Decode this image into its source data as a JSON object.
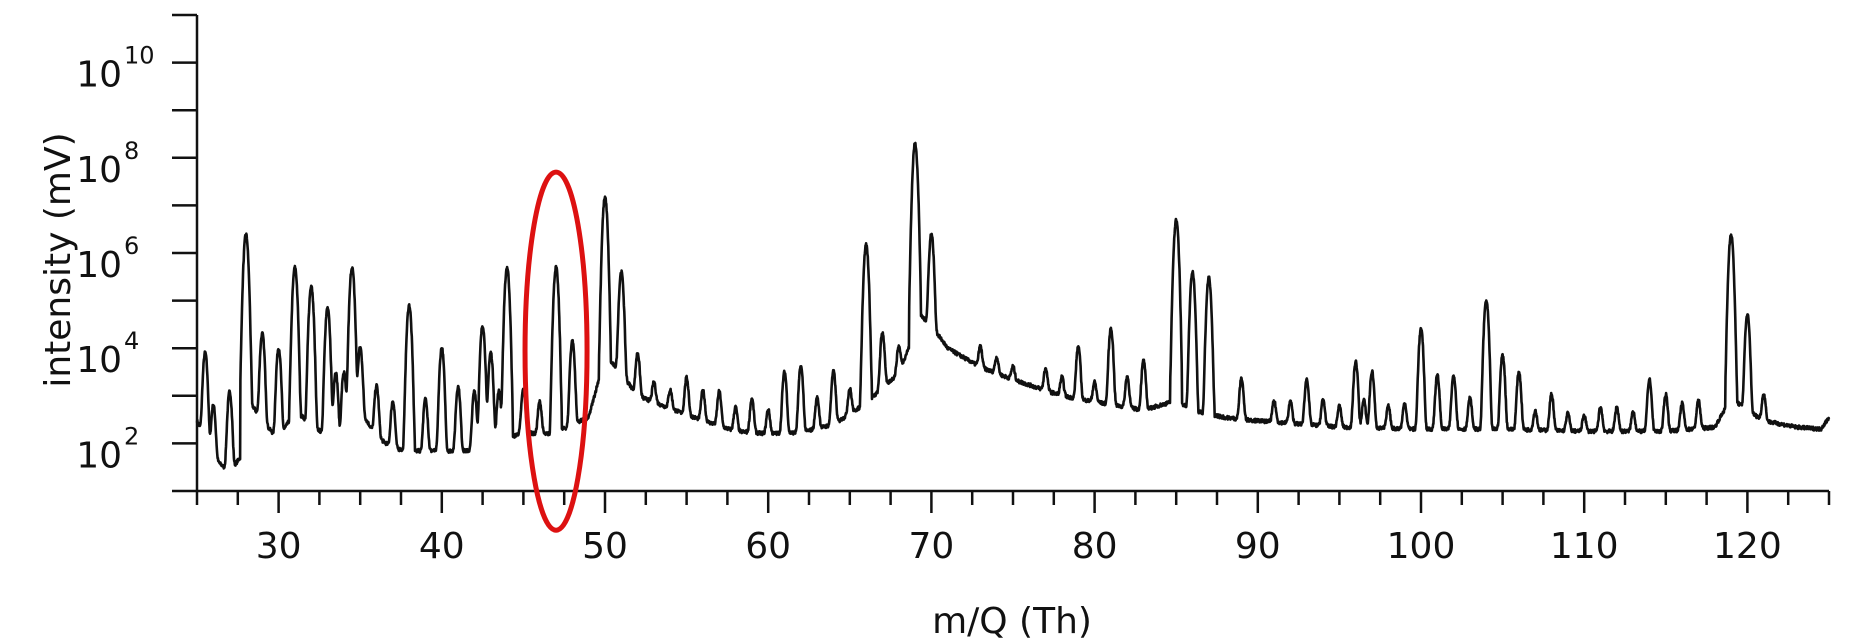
{
  "chart_data": {
    "type": "line",
    "title": "",
    "xlabel": "m/Q (Th)",
    "ylabel": "intensity (mV)",
    "xlim": [
      25,
      125
    ],
    "ylim": [
      10,
      100000000000.0
    ],
    "yscale": "log",
    "x_ticks": [
      30,
      40,
      50,
      60,
      70,
      80,
      90,
      100,
      110,
      120
    ],
    "x_minor_step": 2.5,
    "y_ticks": [
      {
        "base": "10",
        "exp": "2",
        "value": 100
      },
      {
        "base": "10",
        "exp": "4",
        "value": 10000
      },
      {
        "base": "10",
        "exp": "6",
        "value": 1000000
      },
      {
        "base": "10",
        "exp": "8",
        "value": 100000000
      },
      {
        "base": "10",
        "exp": "10",
        "value": 10000000000
      }
    ],
    "grid": false,
    "line_color": "#111111",
    "background": [
      [
        25,
        300
      ],
      [
        26,
        50
      ],
      [
        27,
        25
      ],
      [
        27.8,
        60
      ],
      [
        28.3,
        700
      ],
      [
        29,
        300
      ],
      [
        30,
        120
      ],
      [
        31,
        500
      ],
      [
        32,
        250
      ],
      [
        33,
        140
      ],
      [
        34,
        110
      ],
      [
        34.5,
        400
      ],
      [
        35,
        500
      ],
      [
        36,
        140
      ],
      [
        37,
        80
      ],
      [
        38,
        70
      ],
      [
        39,
        70
      ],
      [
        40,
        70
      ],
      [
        41,
        70
      ],
      [
        42,
        70
      ],
      [
        43,
        90
      ],
      [
        44,
        120
      ],
      [
        45,
        180
      ],
      [
        46,
        150
      ],
      [
        47,
        170
      ],
      [
        48,
        250
      ],
      [
        49,
        350
      ],
      [
        50,
        7000
      ],
      [
        51,
        3000
      ],
      [
        52,
        1000
      ],
      [
        55,
        400
      ],
      [
        58,
        180
      ],
      [
        60,
        160
      ],
      [
        62,
        170
      ],
      [
        64,
        250
      ],
      [
        66,
        700
      ],
      [
        68,
        3000
      ],
      [
        68.8,
        15000
      ],
      [
        69.3,
        50000
      ],
      [
        70,
        30000
      ],
      [
        71,
        10000
      ],
      [
        73,
        4000
      ],
      [
        75,
        2200
      ],
      [
        78,
        1000
      ],
      [
        80,
        750
      ],
      [
        83,
        500
      ],
      [
        85,
        800
      ],
      [
        86,
        500
      ],
      [
        88,
        350
      ],
      [
        90,
        300
      ],
      [
        95,
        220
      ],
      [
        100,
        200
      ],
      [
        105,
        200
      ],
      [
        110,
        180
      ],
      [
        115,
        180
      ],
      [
        118,
        220
      ],
      [
        119,
        900
      ],
      [
        120,
        500
      ],
      [
        121,
        300
      ],
      [
        123,
        220
      ],
      [
        124.5,
        200
      ],
      [
        125,
        350
      ]
    ],
    "peaks": [
      [
        25.5,
        8000
      ],
      [
        26,
        600
      ],
      [
        27,
        1200
      ],
      [
        28,
        2500000
      ],
      [
        29,
        20000
      ],
      [
        30,
        10000
      ],
      [
        31,
        500000
      ],
      [
        32,
        200000
      ],
      [
        33,
        70000
      ],
      [
        33.5,
        3000
      ],
      [
        34,
        3000
      ],
      [
        34.5,
        500000
      ],
      [
        35,
        10000
      ],
      [
        36,
        1500
      ],
      [
        37,
        700
      ],
      [
        38,
        80000
      ],
      [
        39,
        800
      ],
      [
        40,
        10000
      ],
      [
        41,
        1500
      ],
      [
        42,
        1200
      ],
      [
        42.5,
        30000
      ],
      [
        43,
        8000
      ],
      [
        43.5,
        1200
      ],
      [
        44,
        500000
      ],
      [
        45,
        1200
      ],
      [
        46,
        600
      ],
      [
        47,
        500000
      ],
      [
        48,
        14000
      ],
      [
        50,
        15000000
      ],
      [
        51,
        400000
      ],
      [
        52,
        7000
      ],
      [
        53,
        1200
      ],
      [
        54,
        800
      ],
      [
        55,
        2000
      ],
      [
        56,
        1000
      ],
      [
        57,
        1000
      ],
      [
        58,
        400
      ],
      [
        59,
        700
      ],
      [
        60,
        350
      ],
      [
        61,
        3000
      ],
      [
        62,
        4000
      ],
      [
        63,
        700
      ],
      [
        64,
        3000
      ],
      [
        65,
        1000
      ],
      [
        66,
        1500000
      ],
      [
        67,
        20000
      ],
      [
        68,
        8000
      ],
      [
        69,
        200000000
      ],
      [
        70,
        2500000
      ],
      [
        73,
        7000
      ],
      [
        74,
        3500
      ],
      [
        75,
        2000
      ],
      [
        77,
        2500
      ],
      [
        78,
        1500
      ],
      [
        79,
        10000
      ],
      [
        80,
        1200
      ],
      [
        81,
        25000
      ],
      [
        82,
        2000
      ],
      [
        83,
        5000
      ],
      [
        85,
        5000000
      ],
      [
        86,
        400000
      ],
      [
        87,
        300000
      ],
      [
        89,
        2000
      ],
      [
        91,
        500
      ],
      [
        92,
        500
      ],
      [
        93,
        2000
      ],
      [
        94,
        600
      ],
      [
        95,
        400
      ],
      [
        96,
        5000
      ],
      [
        96.5,
        600
      ],
      [
        97,
        3000
      ],
      [
        98,
        400
      ],
      [
        99,
        500
      ],
      [
        100,
        25000
      ],
      [
        101,
        2500
      ],
      [
        102,
        2500
      ],
      [
        103,
        700
      ],
      [
        104,
        100000
      ],
      [
        105,
        7000
      ],
      [
        106,
        3000
      ],
      [
        107,
        300
      ],
      [
        108,
        900
      ],
      [
        109,
        250
      ],
      [
        110,
        220
      ],
      [
        111,
        400
      ],
      [
        112,
        400
      ],
      [
        113,
        300
      ],
      [
        114,
        2000
      ],
      [
        115,
        900
      ],
      [
        116,
        500
      ],
      [
        117,
        600
      ],
      [
        119,
        2500000
      ],
      [
        120,
        50000
      ],
      [
        121,
        800
      ]
    ],
    "annotations": [
      {
        "type": "ellipse",
        "color": "#dd1111",
        "cx": 47,
        "cy_value": 10000,
        "x_half_width": 1.9,
        "y_top": 50000000,
        "y_bottom": 1.5
      }
    ]
  }
}
